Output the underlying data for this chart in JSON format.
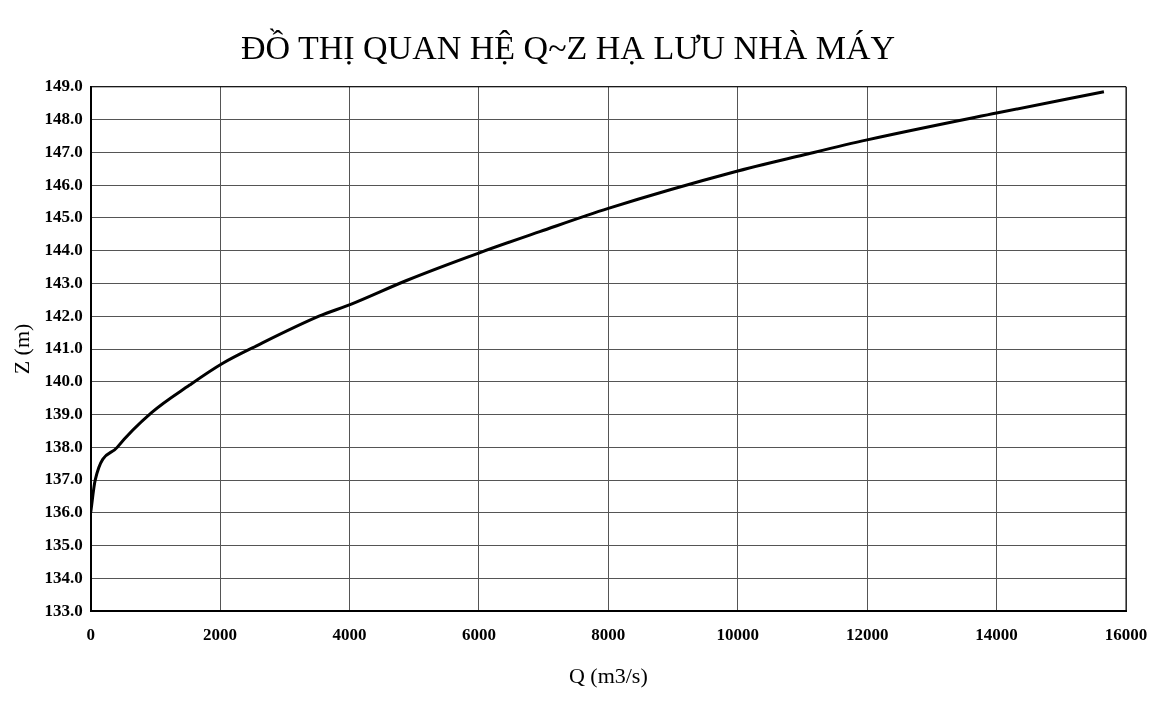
{
  "chart_data": {
    "type": "line",
    "title": "ĐỒ THỊ QUAN HỆ Q~Z HẠ LƯU NHÀ MÁY",
    "xlabel": "Q (m3/s)",
    "ylabel": "Z (m)",
    "x": [
      0,
      70,
      410,
      941,
      1529,
      2029,
      2588,
      3529,
      4029,
      4882,
      6029,
      6941,
      8000,
      10000,
      11012,
      12000,
      14000,
      15659
    ],
    "series": [
      {
        "color": "#000000",
        "values": [
          136.0,
          137.0,
          138.0,
          139.06,
          139.9,
          140.55,
          141.12,
          142.0,
          142.37,
          143.09,
          143.95,
          144.58,
          145.29,
          146.43,
          146.92,
          147.38,
          148.2,
          148.85
        ]
      }
    ],
    "xlim": [
      0,
      16000
    ],
    "xticks": [
      0,
      2000,
      4000,
      6000,
      8000,
      10000,
      12000,
      14000,
      16000
    ],
    "ylim": [
      133,
      149
    ],
    "yticks": [
      {
        "value": 133,
        "label": "133.0"
      },
      {
        "value": 134,
        "label": "134.0"
      },
      {
        "value": 135,
        "label": "135.0"
      },
      {
        "value": 136,
        "label": "136.0"
      },
      {
        "value": 137,
        "label": "137.0"
      },
      {
        "value": 138,
        "label": "138.0"
      },
      {
        "value": 139,
        "label": "139.0"
      },
      {
        "value": 140,
        "label": "140.0"
      },
      {
        "value": 141,
        "label": "141.0"
      },
      {
        "value": 142,
        "label": "142.0"
      },
      {
        "value": 143,
        "label": "143.0"
      },
      {
        "value": 144,
        "label": "144.0"
      },
      {
        "value": 145,
        "label": "145.0"
      },
      {
        "value": 146,
        "label": "146.0"
      },
      {
        "value": 147,
        "label": "147.0"
      },
      {
        "value": 148,
        "label": "148.0"
      },
      {
        "value": 149,
        "label": "149.0"
      }
    ],
    "grid": true,
    "legend": false,
    "marker": "none",
    "line_style": "solid"
  }
}
